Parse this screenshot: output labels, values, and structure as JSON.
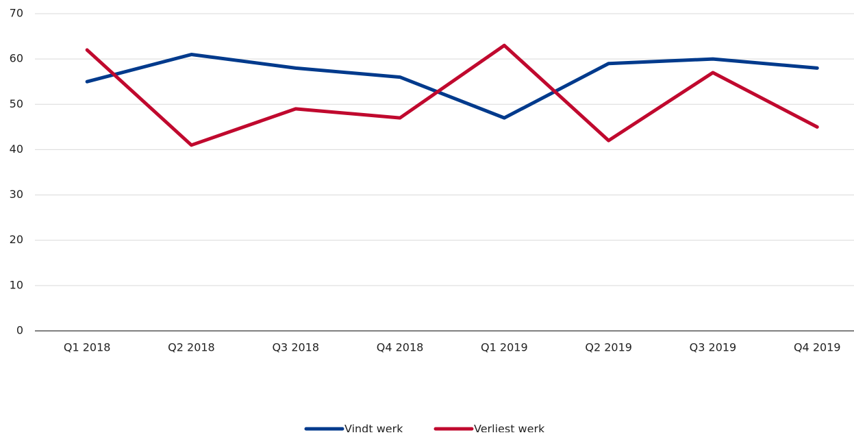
{
  "chart_data": {
    "type": "line",
    "categories": [
      "Q1 2018",
      "Q2 2018",
      "Q3 2018",
      "Q4 2018",
      "Q1 2019",
      "Q2 2019",
      "Q3 2019",
      "Q4 2019"
    ],
    "series": [
      {
        "name": "Vindt werk",
        "color": "#003a8c",
        "values": [
          55,
          61,
          58,
          56,
          47,
          59,
          60,
          58
        ]
      },
      {
        "name": "Verliest werk",
        "color": "#c0092e",
        "values": [
          62,
          41,
          49,
          47,
          63,
          42,
          57,
          45
        ]
      }
    ],
    "ylim": [
      0,
      70
    ],
    "yticks": [
      0,
      10,
      20,
      30,
      40,
      50,
      60,
      70
    ],
    "grid": true,
    "legend": "bottom"
  }
}
